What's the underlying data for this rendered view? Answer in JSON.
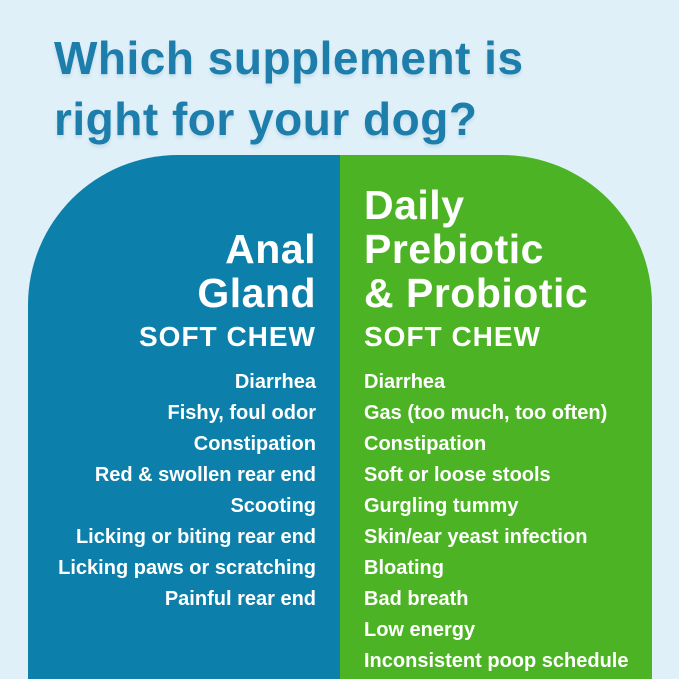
{
  "background": "#dff0f9",
  "title": {
    "line1": "Which supplement is",
    "line2": "right for your dog?",
    "color": "#1d7dab"
  },
  "comparison": {
    "left": {
      "name_lines": [
        "Anal",
        "Gland"
      ],
      "subtitle": "SOFT CHEW",
      "color": "#0c80aa",
      "items": [
        "Diarrhea",
        "Fishy, foul odor",
        "Constipation",
        "Red & swollen rear end",
        "Scooting",
        "Licking or biting rear end",
        "Licking paws or scratching",
        "Painful rear end"
      ]
    },
    "right": {
      "name_lines": [
        "Daily",
        "Prebiotic",
        "& Probiotic"
      ],
      "subtitle": "SOFT CHEW",
      "color": "#4cb424",
      "items": [
        "Diarrhea",
        "Gas (too much, too often)",
        "Constipation",
        "Soft or loose stools",
        "Gurgling tummy",
        "Skin/ear yeast infection",
        "Bloating",
        "Bad breath",
        "Low energy",
        "Inconsistent poop schedule"
      ]
    }
  }
}
